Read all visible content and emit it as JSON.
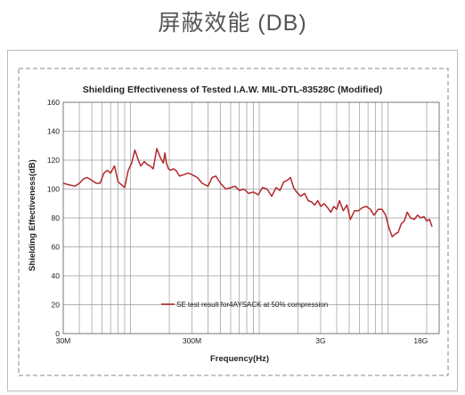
{
  "page_title": "屏蔽效能 (DB)",
  "colors": {
    "series": "#b3282d",
    "grid": "#9a9a9a",
    "frame": "#8a8a8a"
  },
  "chart_data": {
    "type": "line",
    "title": "Shielding Effectiveness of Tested I.A.W. MIL-DTL-83528C (Modified)",
    "xlabel": "Frequency(Hz)",
    "ylabel": "Shielding Effectiveness(dB)",
    "x_scale": "log",
    "x_unit": "Hz",
    "xlim": [
      30000000,
      25000000000
    ],
    "ylim": [
      0,
      160
    ],
    "y_ticks": [
      0,
      20,
      40,
      60,
      80,
      100,
      120,
      140,
      160
    ],
    "x_ticks": [
      {
        "value": 30000000,
        "label": "30M"
      },
      {
        "value": 300000000,
        "label": "300M"
      },
      {
        "value": 3000000000,
        "label": "3G"
      },
      {
        "value": 18000000000,
        "label": "18G"
      }
    ],
    "grid": true,
    "legend_position": "bottom-center",
    "series": [
      {
        "name": "SE test result for4AYSACK at 50% compression",
        "x": [
          30000000,
          33000000,
          37000000,
          40000000,
          43000000,
          46000000,
          50000000,
          54000000,
          58000000,
          62000000,
          66000000,
          70000000,
          75000000,
          80000000,
          85000000,
          90000000,
          96000000,
          102000000,
          108000000,
          115000000,
          120000000,
          128000000,
          135000000,
          142000000,
          150000000,
          160000000,
          170000000,
          180000000,
          185000000,
          190000000,
          197000000,
          205000000,
          215000000,
          225000000,
          240000000,
          260000000,
          280000000,
          300000000,
          330000000,
          360000000,
          400000000,
          430000000,
          460000000,
          500000000,
          550000000,
          600000000,
          650000000,
          700000000,
          760000000,
          830000000,
          900000000,
          980000000,
          1060000000,
          1150000000,
          1250000000,
          1350000000,
          1450000000,
          1550000000,
          1650000000,
          1750000000,
          1850000000,
          1950000000,
          2100000000,
          2250000000,
          2400000000,
          2550000000,
          2700000000,
          2850000000,
          3000000000,
          3200000000,
          3400000000,
          3600000000,
          3800000000,
          4000000000,
          4200000000,
          4500000000,
          4800000000,
          5100000000,
          5500000000,
          5900000000,
          6300000000,
          6800000000,
          7300000000,
          7800000000,
          8400000000,
          9000000000,
          9600000000,
          10200000000,
          10800000000,
          11400000000,
          12000000000,
          12700000000,
          13400000000,
          14100000000,
          15000000000,
          16000000000,
          17000000000,
          18000000000,
          19000000000,
          20000000000,
          21000000000,
          22000000000
        ],
        "y": [
          104,
          103,
          102,
          104,
          107,
          108,
          106,
          104,
          104,
          111,
          113,
          111,
          116,
          105,
          103,
          101,
          113,
          118,
          127,
          120,
          116,
          119,
          117,
          116,
          114,
          128,
          122,
          118,
          125,
          118,
          114,
          113,
          114,
          113,
          109,
          110,
          111,
          110,
          108,
          104,
          102,
          108,
          109,
          104,
          100,
          101,
          102,
          99,
          100,
          97,
          98,
          96,
          101,
          100,
          95,
          101,
          99,
          105,
          106,
          108,
          101,
          98,
          95,
          97,
          92,
          91,
          89,
          92,
          88,
          90,
          87,
          84,
          88,
          86,
          92,
          85,
          89,
          79,
          85,
          85,
          87,
          88,
          86,
          82,
          86,
          86,
          82,
          73,
          67,
          69,
          70,
          76,
          78,
          84,
          80,
          79,
          82,
          80,
          81,
          78,
          79,
          74
        ]
      }
    ]
  }
}
